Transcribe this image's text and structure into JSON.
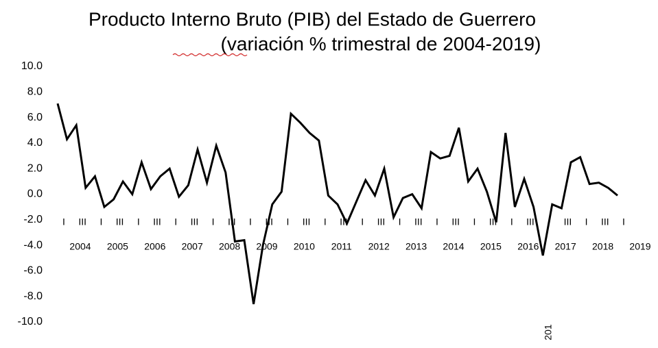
{
  "chart_data": {
    "type": "line",
    "title": "Producto Interno Bruto (PIB) del Estado de Guerrero",
    "subtitle": "(variación % trimestral de 2004-2019)",
    "categories": [
      "I",
      null,
      "III",
      null,
      "I",
      null,
      "III",
      null,
      "I",
      null,
      "III",
      null,
      "I",
      null,
      "III",
      null,
      "I",
      null,
      "III",
      null,
      "I",
      null,
      "III",
      null,
      "I",
      null,
      "III",
      null,
      "I",
      null,
      "III",
      null,
      "I",
      null,
      "III",
      null,
      "I",
      null,
      "III",
      null,
      "I",
      null,
      "III",
      null,
      "I",
      null,
      "III",
      null,
      "I",
      null,
      "III",
      null,
      "I",
      null,
      "III",
      null,
      "I",
      null,
      "III",
      null,
      "I"
    ],
    "years": [
      "2004",
      "2005",
      "2006",
      "2007",
      "2008",
      "2009",
      "2010",
      "2011",
      "2012",
      "2013",
      "2014",
      "2015",
      "2016",
      "2017",
      "2018",
      "2019"
    ],
    "annotation": "201",
    "series": [
      {
        "name": "PIB",
        "color": "#000000",
        "values": [
          7.1,
          4.3,
          5.4,
          0.5,
          1.4,
          -1.0,
          -0.4,
          1.0,
          0.0,
          2.5,
          0.4,
          1.4,
          2.0,
          -0.2,
          0.7,
          3.5,
          0.9,
          3.8,
          1.7,
          -3.7,
          -3.6,
          -8.6,
          -4.0,
          -0.8,
          0.2,
          6.3,
          5.6,
          4.8,
          4.2,
          -0.1,
          -0.8,
          -2.3,
          -0.6,
          1.1,
          -0.1,
          2.0,
          -1.8,
          -0.3,
          0.0,
          -1.1,
          3.3,
          2.8,
          3.0,
          5.2,
          1.0,
          2.0,
          0.2,
          -2.2,
          4.8,
          -1.0,
          1.2,
          -1.0,
          -4.8,
          -0.8,
          -1.1,
          2.5,
          2.9,
          0.8,
          0.9,
          0.5,
          -0.1
        ]
      }
    ],
    "ylim": [
      -10,
      10
    ],
    "yticks": [
      {
        "value": 10,
        "label": "10.0"
      },
      {
        "value": 8,
        "label": "8.0"
      },
      {
        "value": 6,
        "label": "6.0"
      },
      {
        "value": 4,
        "label": "4.0"
      },
      {
        "value": 2,
        "label": "2.0"
      },
      {
        "value": 0,
        "label": "0.0"
      },
      {
        "value": -2,
        "label": "-2.0"
      },
      {
        "value": -4,
        "label": "-4.0"
      },
      {
        "value": -6,
        "label": "-6.0"
      },
      {
        "value": -8,
        "label": "-8.0"
      },
      {
        "value": -10,
        "label": "-10.0"
      }
    ],
    "grid": false
  }
}
